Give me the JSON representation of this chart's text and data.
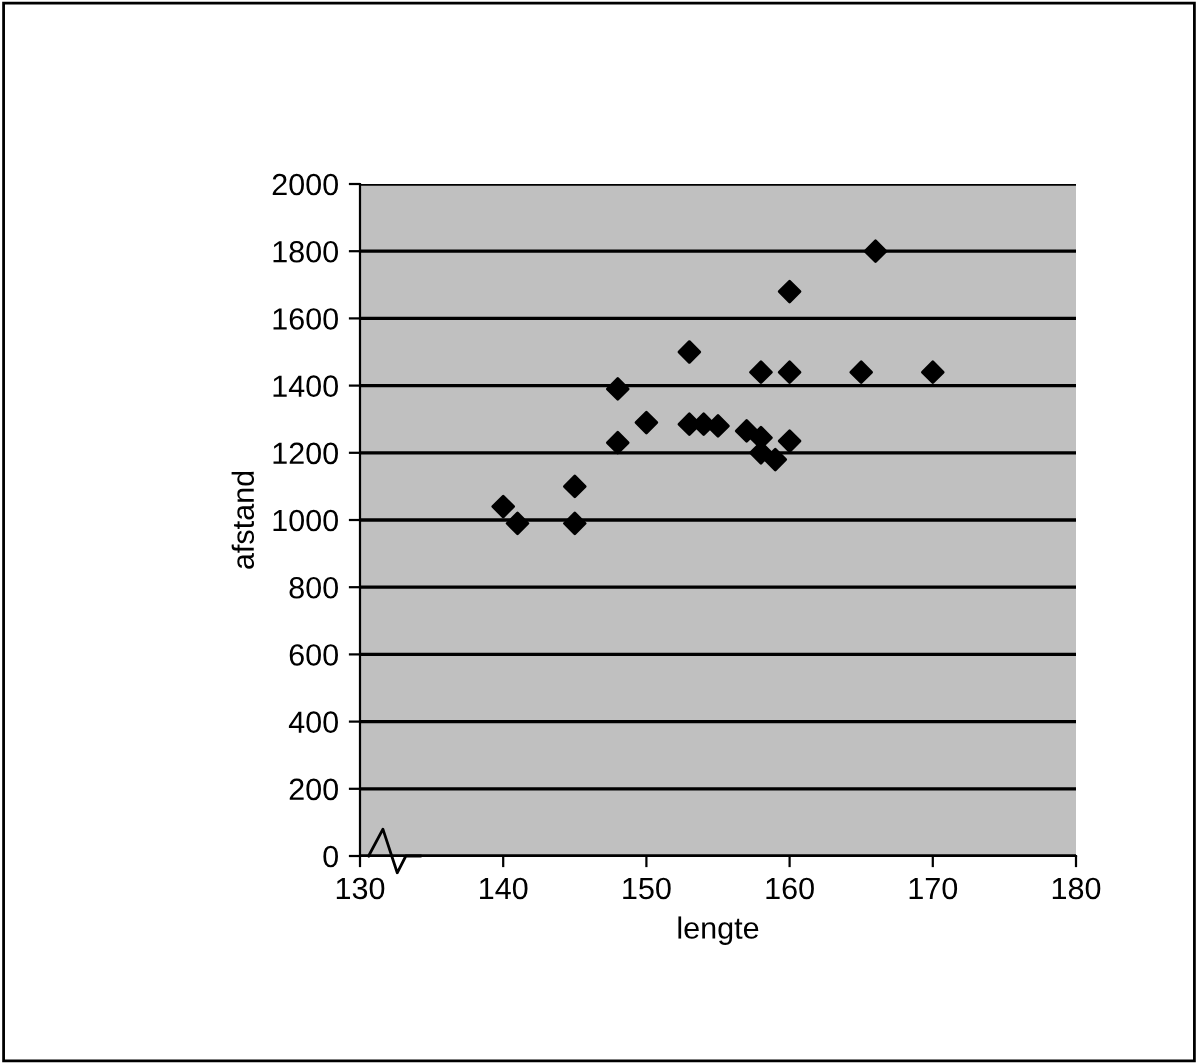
{
  "chart_data": {
    "type": "scatter",
    "xlabel": "lengte",
    "ylabel": "afstand",
    "x": [
      140,
      141,
      145,
      145,
      148,
      148,
      150,
      153,
      153,
      154,
      155,
      157,
      158,
      158,
      158,
      159,
      160,
      160,
      160,
      165,
      166,
      170
    ],
    "series": [
      {
        "color": "#000000",
        "values": [
          1040,
          990,
          1100,
          990,
          1390,
          1230,
          1290,
          1500,
          1285,
          1285,
          1280,
          1265,
          1245,
          1200,
          1440,
          1180,
          1235,
          1440,
          1680,
          1440,
          1800,
          1440
        ]
      }
    ],
    "xlim": [
      130,
      180
    ],
    "xticks": [
      130,
      140,
      150,
      160,
      170,
      180
    ],
    "ylim": [
      0,
      2000
    ],
    "yticks": [
      0,
      200,
      400,
      600,
      800,
      1000,
      1200,
      1400,
      1600,
      1800,
      2000
    ],
    "grid": "y",
    "marker": "diamond",
    "legend": false
  }
}
